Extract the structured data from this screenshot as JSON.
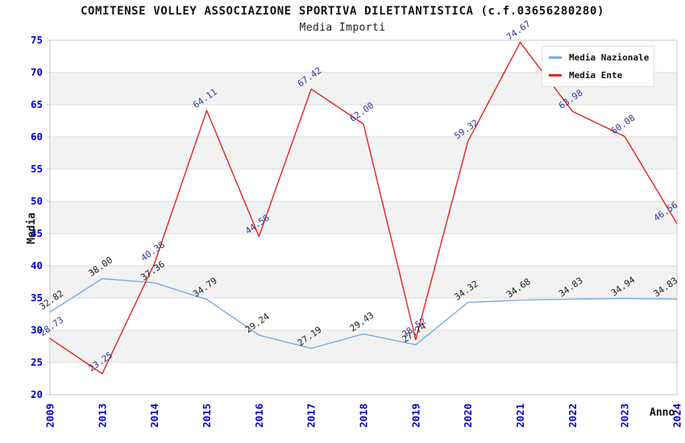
{
  "header": {
    "title": "COMITENSE VOLLEY ASSOCIAZIONE SPORTIVA DILETTANTISTICA (c.f.03656280280)",
    "subtitle": "Media Importi"
  },
  "legend": {
    "items": [
      {
        "label": "Media Nazionale",
        "color": "#77a9ea"
      },
      {
        "label": "Media Ente",
        "color": "#e81f1f"
      }
    ]
  },
  "chart_data": {
    "type": "line",
    "title": "COMITENSE VOLLEY ASSOCIAZIONE SPORTIVA DILETTANTISTICA (c.f.03656280280)",
    "subtitle": "Media Importi",
    "xlabel": "Anno",
    "ylabel": "Media",
    "categories": [
      "2009",
      "2013",
      "2014",
      "2015",
      "2016",
      "2017",
      "2018",
      "2019",
      "2020",
      "2021",
      "2022",
      "2023",
      "2024"
    ],
    "series": [
      {
        "name": "Media Nazionale",
        "color": "#77a9ea",
        "label_color": "#1a1a1a",
        "values": [
          32.82,
          38.0,
          37.36,
          34.79,
          29.24,
          27.19,
          29.43,
          27.74,
          34.32,
          34.68,
          34.83,
          34.94,
          34.83
        ]
      },
      {
        "name": "Media Ente",
        "color": "#e81f1f",
        "label_color": "#333399",
        "values": [
          28.73,
          23.25,
          40.38,
          64.11,
          44.56,
          67.42,
          62.0,
          28.52,
          59.32,
          74.67,
          63.98,
          60.08,
          46.56
        ]
      }
    ],
    "ylim": [
      20,
      75
    ],
    "ytick_step": 5,
    "grid": "horizontal-bands",
    "legend_position": "top-right",
    "colors": {
      "tick_label": "#0000cc",
      "band": "#f2f2f2",
      "gridline": "#dcdcdc",
      "border": "#c8c8c8"
    }
  }
}
